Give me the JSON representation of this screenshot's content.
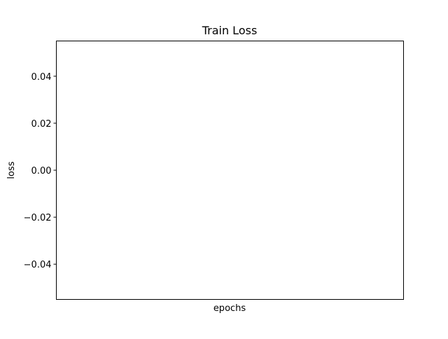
{
  "chart_data": {
    "type": "line",
    "title": "Train Loss",
    "xlabel": "epochs",
    "ylabel": "loss",
    "series": [
      {
        "x": [],
        "values": []
      }
    ],
    "ylim": [
      -0.055,
      0.055
    ],
    "yticks": [
      0.04,
      0.02,
      0.0,
      -0.02,
      -0.04
    ],
    "ytick_labels": [
      "0.04",
      "0.02",
      "0.00",
      "−0.02",
      "−0.04"
    ],
    "xticks": [],
    "grid": false,
    "legend": "none"
  }
}
